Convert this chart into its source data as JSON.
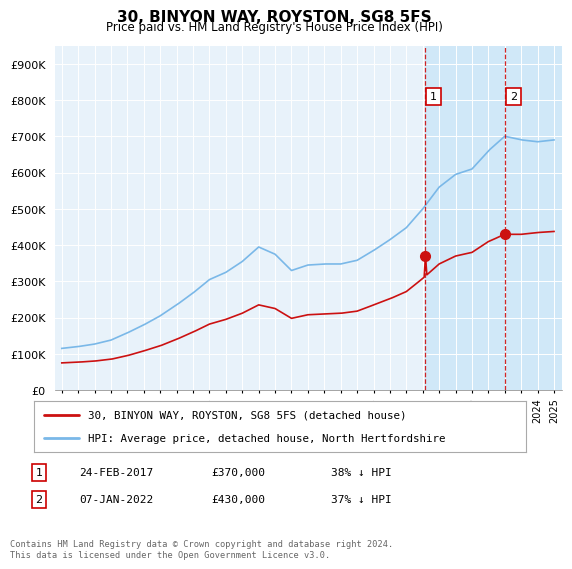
{
  "title": "30, BINYON WAY, ROYSTON, SG8 5FS",
  "subtitle": "Price paid vs. HM Land Registry's House Price Index (HPI)",
  "footer": "Contains HM Land Registry data © Crown copyright and database right 2024.\nThis data is licensed under the Open Government Licence v3.0.",
  "legend_line1": "30, BINYON WAY, ROYSTON, SG8 5FS (detached house)",
  "legend_line2": "HPI: Average price, detached house, North Hertfordshire",
  "annotation1_label": "1",
  "annotation1_date": "24-FEB-2017",
  "annotation1_price": "£370,000",
  "annotation1_hpi": "38% ↓ HPI",
  "annotation1_year": 2017.13,
  "annotation1_value": 370000,
  "annotation2_label": "2",
  "annotation2_date": "07-JAN-2022",
  "annotation2_price": "£430,000",
  "annotation2_hpi": "37% ↓ HPI",
  "annotation2_year": 2022.02,
  "annotation2_value": 430000,
  "hpi_color": "#7ab8e8",
  "price_color": "#cc1111",
  "background_plot": "#e8f2fa",
  "background_fig": "#ffffff",
  "background_shaded": "#d0e8f8",
  "grid_color": "#ffffff",
  "ylim": [
    0,
    950000
  ],
  "yticks": [
    0,
    100000,
    200000,
    300000,
    400000,
    500000,
    600000,
    700000,
    800000,
    900000
  ]
}
